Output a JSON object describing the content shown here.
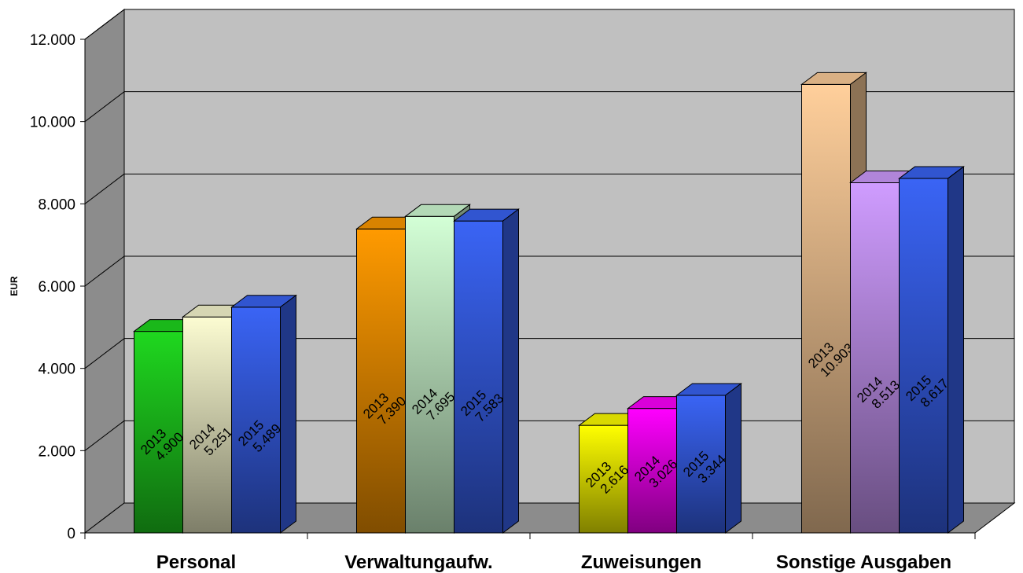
{
  "chart_data": {
    "type": "bar",
    "title": "",
    "xlabel": "",
    "ylabel": "EUR",
    "ylim": [
      0,
      12000
    ],
    "yticks": [
      0,
      2000,
      4000,
      6000,
      8000,
      10000,
      12000
    ],
    "ytick_labels": [
      "0",
      "2.000",
      "4.000",
      "6.000",
      "8.000",
      "10.000",
      "12.000"
    ],
    "grid": true,
    "legend": "none",
    "categories": [
      "Personal",
      "Verwaltungaufw.",
      "Zuweisungen",
      "Sonstige Ausgaben"
    ],
    "series": [
      {
        "name": "2013",
        "values": [
          4900,
          7390,
          2616,
          10903
        ],
        "value_labels": [
          "4.900",
          "7.390",
          "2.616",
          "10.903"
        ]
      },
      {
        "name": "2014",
        "values": [
          5251,
          7695,
          3026,
          8513
        ],
        "value_labels": [
          "5.251",
          "7.695",
          "3.026",
          "8.513"
        ]
      },
      {
        "name": "2015",
        "values": [
          5489,
          7583,
          3344,
          8617
        ],
        "value_labels": [
          "5.489",
          "7.583",
          "3.344",
          "8.617"
        ]
      }
    ],
    "colors": [
      [
        "#1fd81f",
        "#fcfcd2",
        "#3a64f5"
      ],
      [
        "#ff9a00",
        "#d3ffd6",
        "#3a64f5"
      ],
      [
        "#ffff00",
        "#ff00ff",
        "#3a64f5"
      ],
      [
        "#ffcf9b",
        "#cf9cff",
        "#3a64f5"
      ]
    ],
    "background": {
      "wall": "#c0c0c0",
      "floor": "#8c8c8c",
      "side_wall": "#8c8c8c"
    }
  }
}
